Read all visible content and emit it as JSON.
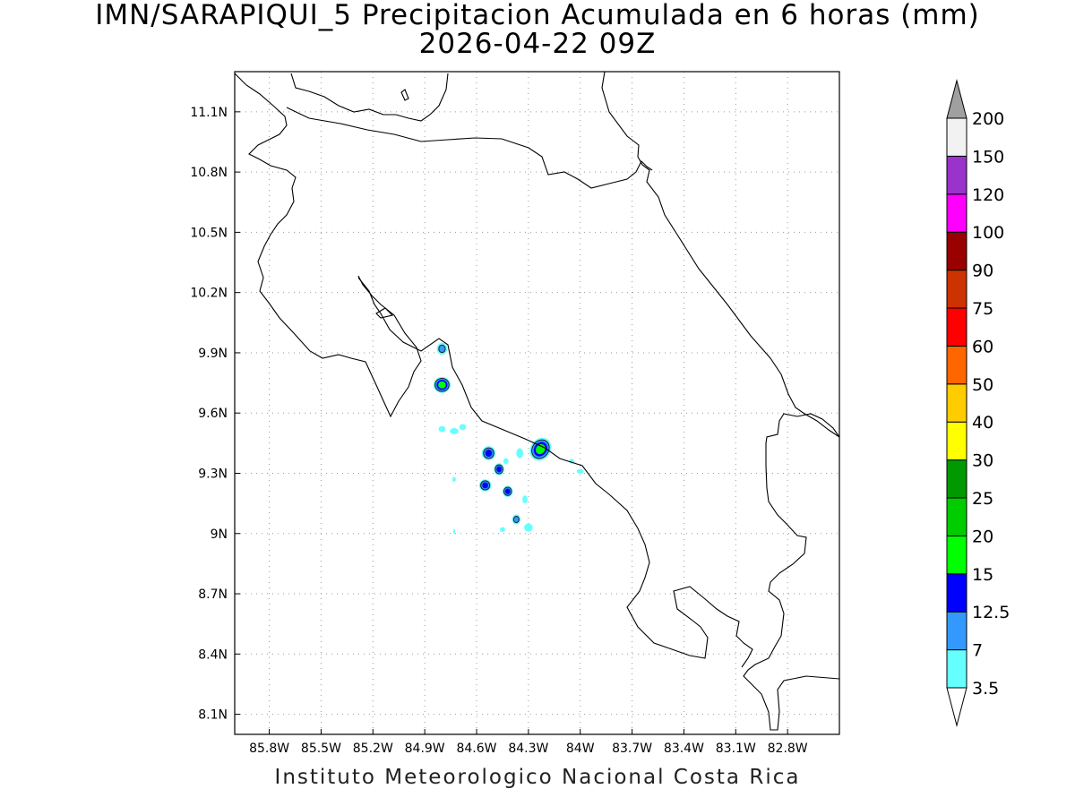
{
  "title": "IMN/SARAPIQUI_5 Precipitacion Acumulada en 6 horas (mm)",
  "subtitle": "2026-04-22 09Z",
  "footer": "Instituto Meteorologico Nacional Costa Rica",
  "map": {
    "lon_range": [
      -86.0,
      -82.5
    ],
    "lat_range": [
      8.0,
      11.3
    ],
    "lon_ticks": [
      {
        "value": -85.8,
        "label": "85.8W"
      },
      {
        "value": -85.5,
        "label": "85.5W"
      },
      {
        "value": -85.2,
        "label": "85.2W"
      },
      {
        "value": -84.9,
        "label": "84.9W"
      },
      {
        "value": -84.6,
        "label": "84.6W"
      },
      {
        "value": -84.3,
        "label": "84.3W"
      },
      {
        "value": -84.0,
        "label": "84W"
      },
      {
        "value": -83.7,
        "label": "83.7W"
      },
      {
        "value": -83.4,
        "label": "83.4W"
      },
      {
        "value": -83.1,
        "label": "83.1W"
      },
      {
        "value": -82.8,
        "label": "82.8W"
      }
    ],
    "lat_ticks": [
      {
        "value": 11.1,
        "label": "11.1N"
      },
      {
        "value": 10.8,
        "label": "10.8N"
      },
      {
        "value": 10.5,
        "label": "10.5N"
      },
      {
        "value": 10.2,
        "label": "10.2N"
      },
      {
        "value": 9.9,
        "label": "9.9N"
      },
      {
        "value": 9.6,
        "label": "9.6N"
      },
      {
        "value": 9.3,
        "label": "9.3N"
      },
      {
        "value": 9.0,
        "label": "9N"
      },
      {
        "value": 8.7,
        "label": "8.7N"
      },
      {
        "value": 8.4,
        "label": "8.4N"
      },
      {
        "value": 8.1,
        "label": "8.1N"
      }
    ],
    "grid": true
  },
  "colorbar": {
    "levels": [
      "3.5",
      "7",
      "12.5",
      "15",
      "20",
      "25",
      "30",
      "40",
      "50",
      "60",
      "75",
      "90",
      "100",
      "120",
      "150",
      "200"
    ],
    "colors": [
      "#66ffff",
      "#3399ff",
      "#0000ff",
      "#00ff00",
      "#00cc00",
      "#009900",
      "#ffff00",
      "#ffcc00",
      "#ff6600",
      "#ff0000",
      "#cc3300",
      "#990000",
      "#ff00ff",
      "#9933cc",
      "#f2f2f2"
    ],
    "under_color": "#ffffff",
    "over_color": "#a0a0a0"
  },
  "precip_cells": [
    {
      "lon": -84.23,
      "lat": 9.42,
      "rx": 0.07,
      "ry": 0.05,
      "level": 4,
      "rot": -55
    },
    {
      "lon": -84.8,
      "lat": 9.74,
      "rx": 0.05,
      "ry": 0.04,
      "level": 4,
      "rot": 0
    },
    {
      "lon": -84.53,
      "lat": 9.4,
      "rx": 0.04,
      "ry": 0.035,
      "level": 3,
      "rot": 0
    },
    {
      "lon": -84.47,
      "lat": 9.32,
      "rx": 0.03,
      "ry": 0.03,
      "level": 3,
      "rot": 0
    },
    {
      "lon": -84.55,
      "lat": 9.24,
      "rx": 0.035,
      "ry": 0.03,
      "level": 3,
      "rot": 0
    },
    {
      "lon": -84.42,
      "lat": 9.21,
      "rx": 0.03,
      "ry": 0.028,
      "level": 3,
      "rot": 0
    },
    {
      "lon": -84.8,
      "lat": 9.92,
      "rx": 0.03,
      "ry": 0.03,
      "level": 2,
      "rot": 0
    },
    {
      "lon": -84.37,
      "lat": 9.07,
      "rx": 0.025,
      "ry": 0.025,
      "level": 2,
      "rot": 0
    },
    {
      "lon": -84.3,
      "lat": 9.03,
      "rx": 0.025,
      "ry": 0.02,
      "level": 1,
      "rot": 0
    },
    {
      "lon": -84.8,
      "lat": 9.52,
      "rx": 0.02,
      "ry": 0.015,
      "level": 1,
      "rot": 0
    },
    {
      "lon": -84.73,
      "lat": 9.51,
      "rx": 0.025,
      "ry": 0.015,
      "level": 1,
      "rot": 0
    },
    {
      "lon": -84.68,
      "lat": 9.53,
      "rx": 0.02,
      "ry": 0.015,
      "level": 1,
      "rot": 0
    },
    {
      "lon": -84.35,
      "lat": 9.4,
      "rx": 0.02,
      "ry": 0.025,
      "level": 1,
      "rot": 0
    },
    {
      "lon": -84.43,
      "lat": 9.36,
      "rx": 0.015,
      "ry": 0.015,
      "level": 1,
      "rot": 0
    },
    {
      "lon": -84.32,
      "lat": 9.17,
      "rx": 0.015,
      "ry": 0.02,
      "level": 1,
      "rot": 0
    },
    {
      "lon": -84.45,
      "lat": 9.02,
      "rx": 0.015,
      "ry": 0.012,
      "level": 1,
      "rot": 0
    },
    {
      "lon": -84.05,
      "lat": 9.36,
      "rx": 0.015,
      "ry": 0.012,
      "level": 1,
      "rot": 0
    },
    {
      "lon": -84.0,
      "lat": 9.31,
      "rx": 0.02,
      "ry": 0.012,
      "level": 1,
      "rot": 0
    },
    {
      "lon": -84.73,
      "lat": 9.27,
      "rx": 0.01,
      "ry": 0.012,
      "level": 1,
      "rot": 0
    },
    {
      "lon": -84.73,
      "lat": 9.01,
      "rx": 0.006,
      "ry": 0.012,
      "level": 1,
      "rot": 0
    }
  ]
}
